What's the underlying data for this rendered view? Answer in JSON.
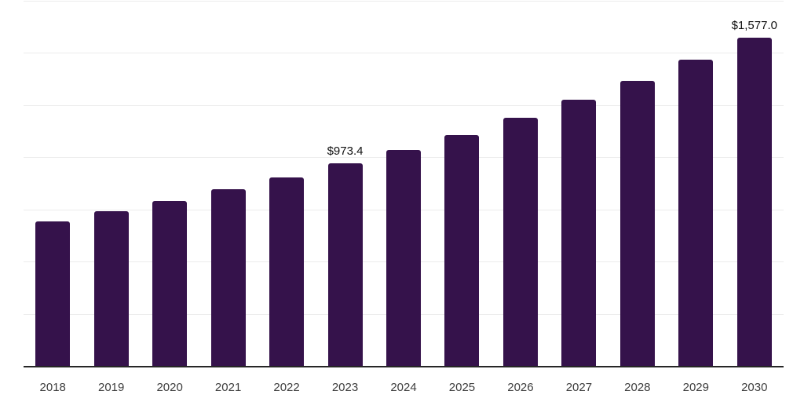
{
  "chart_data": {
    "type": "bar",
    "title": "",
    "xlabel": "",
    "ylabel": "",
    "categories": [
      "2018",
      "2019",
      "2020",
      "2021",
      "2022",
      "2023",
      "2024",
      "2025",
      "2026",
      "2027",
      "2028",
      "2029",
      "2030"
    ],
    "values": [
      696,
      745,
      794,
      851,
      907,
      973.4,
      1039,
      1110,
      1193,
      1280,
      1370,
      1471,
      1577.0
    ],
    "data_labels": [
      "",
      "",
      "",
      "",
      "",
      "$973.4",
      "",
      "",
      "",
      "",
      "",
      "",
      "$1,577.0"
    ],
    "ylim": [
      0,
      1750
    ],
    "grid_step": 250,
    "grid": true,
    "legend": false,
    "bar_color": "#35124B",
    "axis_color": "#262626",
    "grid_color": "#ececec",
    "tick_label_color": "#3d3d3d",
    "data_label_color": "#111111"
  }
}
